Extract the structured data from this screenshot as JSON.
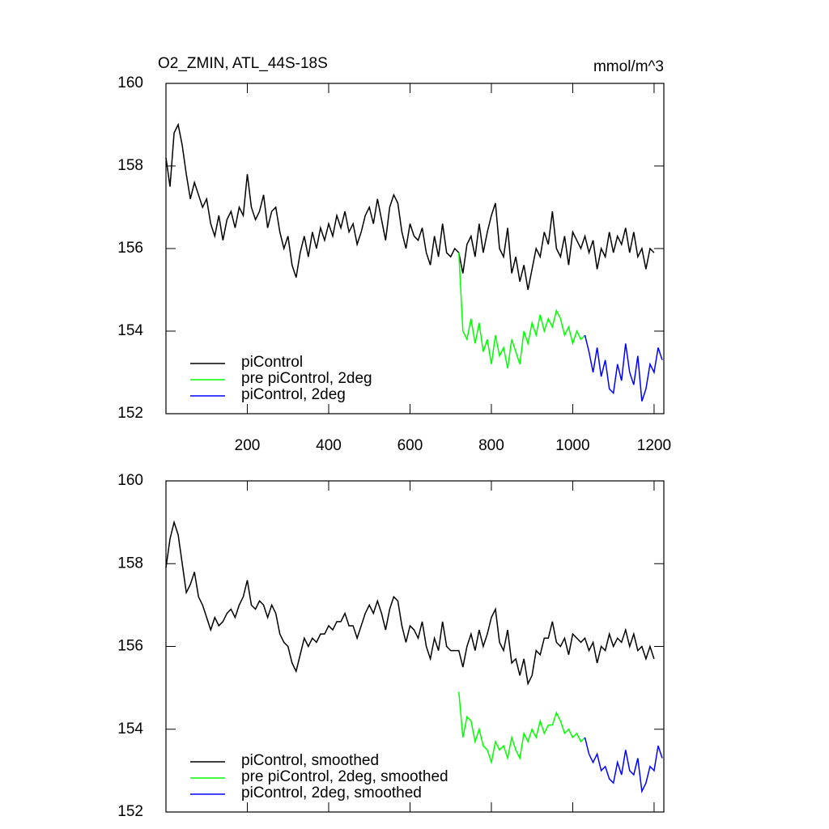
{
  "chart_data": [
    {
      "type": "line",
      "title": "O2_ZMIN, ATL_44S-18S",
      "units": "mmol/m^3",
      "xlim": [
        0,
        1224
      ],
      "ylim": [
        152,
        160
      ],
      "xticks": [
        200,
        400,
        600,
        800,
        1000,
        1200
      ],
      "show_xtick_labels": true,
      "yticks": [
        152,
        154,
        156,
        158,
        160
      ],
      "legend": "lower left",
      "series": [
        {
          "name": "piControl",
          "color": "#000000",
          "x": [
            0,
            10,
            20,
            30,
            40,
            50,
            60,
            70,
            80,
            90,
            100,
            110,
            120,
            130,
            140,
            150,
            160,
            170,
            180,
            190,
            200,
            210,
            220,
            230,
            240,
            250,
            260,
            270,
            280,
            290,
            300,
            310,
            320,
            330,
            340,
            350,
            360,
            370,
            380,
            390,
            400,
            410,
            420,
            430,
            440,
            450,
            460,
            470,
            480,
            490,
            500,
            510,
            520,
            530,
            540,
            550,
            560,
            570,
            580,
            590,
            600,
            610,
            620,
            630,
            640,
            650,
            660,
            670,
            680,
            690,
            700,
            710,
            720,
            730,
            740,
            750,
            760,
            770,
            780,
            790,
            800,
            810,
            820,
            830,
            840,
            850,
            860,
            870,
            880,
            890,
            900,
            910,
            920,
            930,
            940,
            950,
            960,
            970,
            980,
            990,
            1000,
            1010,
            1020,
            1030,
            1040,
            1050,
            1060,
            1070,
            1080,
            1090,
            1100,
            1110,
            1120,
            1130,
            1140,
            1150,
            1160,
            1170,
            1180,
            1190,
            1200
          ],
          "values": [
            158.2,
            157.5,
            158.8,
            159.0,
            158.5,
            157.8,
            157.2,
            157.6,
            157.3,
            157.0,
            157.2,
            156.6,
            156.3,
            156.8,
            156.2,
            156.7,
            156.9,
            156.5,
            157.0,
            156.8,
            157.8,
            157.0,
            156.7,
            156.9,
            157.3,
            156.5,
            156.9,
            157.0,
            156.4,
            156.0,
            156.3,
            155.6,
            155.3,
            155.9,
            156.3,
            155.8,
            156.4,
            156.0,
            156.5,
            156.2,
            156.6,
            156.3,
            156.8,
            156.5,
            156.9,
            156.4,
            156.6,
            156.1,
            156.4,
            156.8,
            157.0,
            156.6,
            157.2,
            156.7,
            156.2,
            157.0,
            157.3,
            157.1,
            156.4,
            156.0,
            156.6,
            156.3,
            156.2,
            156.5,
            155.9,
            155.6,
            156.3,
            155.8,
            156.6,
            155.9,
            155.8,
            156.0,
            155.9,
            155.4,
            156.1,
            156.3,
            155.8,
            156.6,
            155.9,
            156.4,
            156.8,
            157.1,
            156.0,
            155.8,
            156.5,
            155.4,
            155.8,
            155.2,
            155.6,
            155.0,
            155.5,
            156.0,
            155.8,
            156.4,
            156.1,
            156.9,
            156.0,
            155.8,
            156.3,
            155.6,
            156.4,
            156.2,
            156.0,
            156.3,
            155.9,
            156.2,
            155.5,
            156.0,
            155.8,
            156.4,
            155.9,
            156.3,
            156.1,
            156.5,
            155.9,
            156.4,
            155.8,
            156.0,
            155.5,
            156.0,
            155.9
          ]
        },
        {
          "name": "pre piControl, 2deg",
          "color": "#00ff00",
          "x": [
            720,
            730,
            740,
            750,
            760,
            770,
            780,
            790,
            800,
            810,
            820,
            830,
            840,
            850,
            860,
            870,
            880,
            890,
            900,
            910,
            920,
            930,
            940,
            950,
            960,
            970,
            980,
            990,
            1000,
            1010,
            1020,
            1030
          ],
          "values": [
            155.9,
            154.0,
            153.8,
            154.3,
            153.7,
            154.2,
            153.5,
            153.8,
            153.2,
            153.9,
            153.4,
            153.6,
            153.1,
            153.8,
            153.5,
            153.2,
            154.0,
            153.7,
            154.2,
            153.9,
            154.4,
            154.0,
            154.3,
            154.1,
            154.5,
            154.3,
            153.9,
            154.1,
            153.7,
            154.0,
            153.8,
            153.9
          ]
        },
        {
          "name": "piControl, 2deg",
          "color": "#0000ff",
          "x": [
            1030,
            1040,
            1050,
            1060,
            1070,
            1080,
            1090,
            1100,
            1110,
            1120,
            1130,
            1140,
            1150,
            1160,
            1170,
            1180,
            1190,
            1200,
            1210,
            1220
          ],
          "values": [
            153.9,
            153.5,
            153.0,
            153.6,
            152.9,
            153.3,
            152.6,
            152.5,
            153.2,
            152.8,
            153.7,
            153.0,
            152.7,
            153.4,
            152.3,
            152.6,
            153.2,
            153.0,
            153.6,
            153.3
          ]
        }
      ]
    },
    {
      "type": "line",
      "xlim": [
        0,
        1224
      ],
      "ylim": [
        152,
        160
      ],
      "xticks": [
        200,
        400,
        600,
        800,
        1000,
        1200
      ],
      "show_xtick_labels": false,
      "yticks": [
        152,
        154,
        156,
        158,
        160
      ],
      "legend": "lower left",
      "series": [
        {
          "name": "piControl, smoothed",
          "color": "#000000",
          "x": [
            0,
            10,
            20,
            30,
            40,
            50,
            60,
            70,
            80,
            90,
            100,
            110,
            120,
            130,
            140,
            150,
            160,
            170,
            180,
            190,
            200,
            210,
            220,
            230,
            240,
            250,
            260,
            270,
            280,
            290,
            300,
            310,
            320,
            330,
            340,
            350,
            360,
            370,
            380,
            390,
            400,
            410,
            420,
            430,
            440,
            450,
            460,
            470,
            480,
            490,
            500,
            510,
            520,
            530,
            540,
            550,
            560,
            570,
            580,
            590,
            600,
            610,
            620,
            630,
            640,
            650,
            660,
            670,
            680,
            690,
            700,
            710,
            720,
            730,
            740,
            750,
            760,
            770,
            780,
            790,
            800,
            810,
            820,
            830,
            840,
            850,
            860,
            870,
            880,
            890,
            900,
            910,
            920,
            930,
            940,
            950,
            960,
            970,
            980,
            990,
            1000,
            1010,
            1020,
            1030,
            1040,
            1050,
            1060,
            1070,
            1080,
            1090,
            1100,
            1110,
            1120,
            1130,
            1140,
            1150,
            1160,
            1170,
            1180,
            1190,
            1200
          ],
          "values": [
            157.9,
            158.6,
            159.0,
            158.7,
            158.0,
            157.3,
            157.5,
            157.8,
            157.2,
            157.0,
            156.7,
            156.4,
            156.7,
            156.5,
            156.6,
            156.8,
            156.9,
            156.7,
            157.0,
            157.2,
            157.6,
            157.0,
            156.9,
            157.1,
            157.0,
            156.7,
            157.0,
            156.8,
            156.3,
            156.1,
            156.0,
            155.6,
            155.4,
            155.8,
            156.2,
            156.0,
            156.2,
            156.1,
            156.3,
            156.3,
            156.5,
            156.4,
            156.6,
            156.6,
            156.8,
            156.5,
            156.5,
            156.2,
            156.5,
            156.8,
            157.0,
            156.8,
            157.1,
            156.8,
            156.4,
            156.9,
            157.2,
            157.1,
            156.5,
            156.1,
            156.5,
            156.4,
            156.2,
            156.6,
            156.0,
            155.7,
            156.2,
            155.9,
            156.6,
            156.0,
            155.9,
            155.9,
            155.9,
            155.5,
            156.0,
            156.3,
            155.9,
            156.4,
            156.0,
            156.3,
            156.7,
            156.9,
            156.1,
            155.9,
            156.4,
            155.6,
            155.7,
            155.3,
            155.7,
            155.1,
            155.3,
            155.9,
            155.8,
            156.2,
            156.2,
            156.6,
            156.1,
            156.0,
            156.2,
            155.8,
            156.3,
            156.2,
            156.1,
            156.2,
            155.9,
            156.1,
            155.6,
            156.0,
            155.9,
            156.3,
            156.0,
            156.2,
            156.1,
            156.4,
            156.0,
            156.3,
            155.9,
            156.0,
            155.7,
            156.0,
            155.7
          ]
        },
        {
          "name": "pre piControl, 2deg, smoothed",
          "color": "#00ff00",
          "x": [
            720,
            730,
            740,
            750,
            760,
            770,
            780,
            790,
            800,
            810,
            820,
            830,
            840,
            850,
            860,
            870,
            880,
            890,
            900,
            910,
            920,
            930,
            940,
            950,
            960,
            970,
            980,
            990,
            1000,
            1010,
            1020,
            1030
          ],
          "values": [
            154.9,
            153.8,
            154.3,
            154.2,
            153.7,
            154.0,
            153.6,
            153.5,
            153.2,
            153.7,
            153.5,
            153.6,
            153.3,
            153.8,
            153.5,
            153.3,
            153.9,
            153.7,
            154.0,
            153.8,
            154.2,
            153.9,
            154.1,
            154.1,
            154.4,
            154.2,
            153.9,
            154.0,
            153.8,
            153.9,
            153.7,
            153.8
          ]
        },
        {
          "name": "piControl, 2deg, smoothed",
          "color": "#0000ff",
          "x": [
            1030,
            1040,
            1050,
            1060,
            1070,
            1080,
            1090,
            1100,
            1110,
            1120,
            1130,
            1140,
            1150,
            1160,
            1170,
            1180,
            1190,
            1200,
            1210,
            1220
          ],
          "values": [
            153.8,
            153.4,
            153.2,
            153.4,
            153.0,
            153.1,
            152.8,
            152.7,
            153.2,
            152.9,
            153.5,
            153.0,
            152.9,
            153.3,
            152.5,
            152.7,
            153.1,
            153.0,
            153.6,
            153.3
          ]
        }
      ]
    }
  ]
}
